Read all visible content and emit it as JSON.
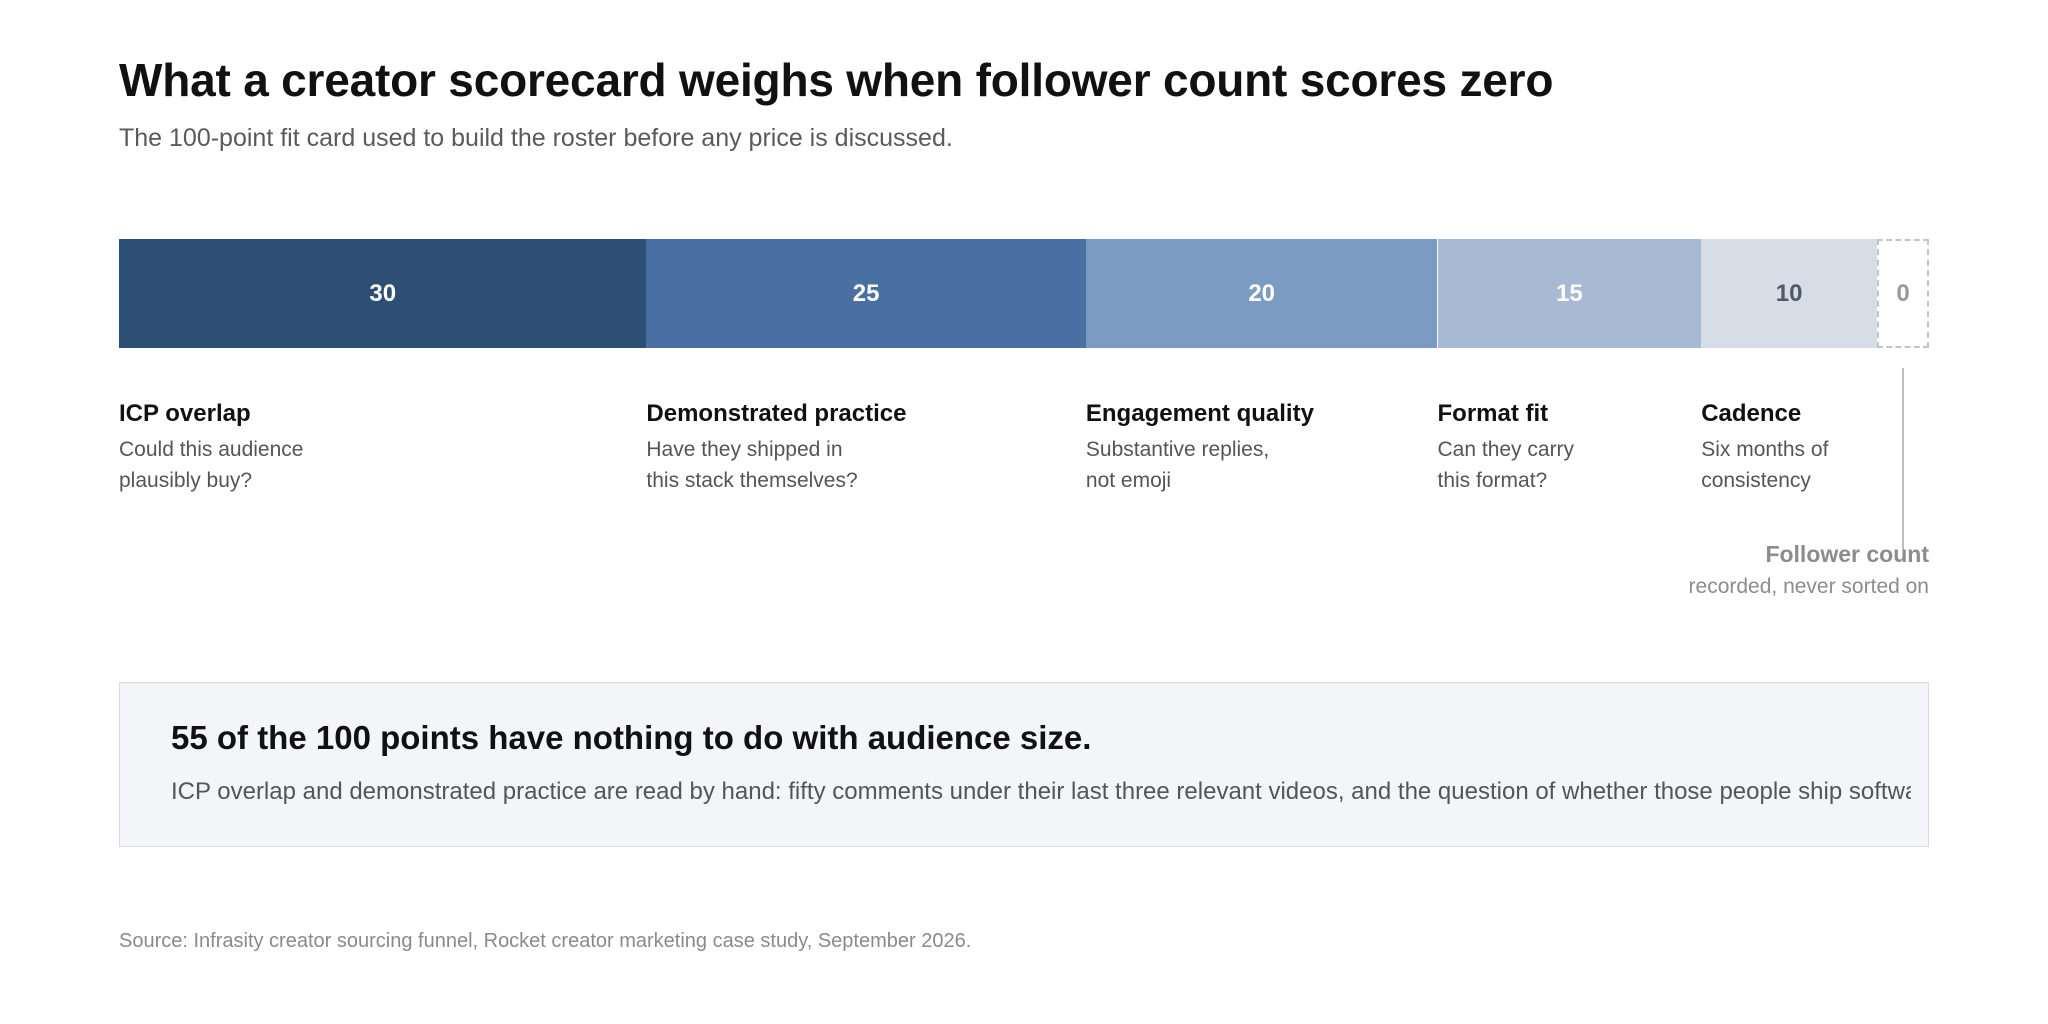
{
  "title": "What a creator scorecard weighs when follower count scores zero",
  "subtitle": "The 100-point fit card used to build the roster before any price is discussed.",
  "chart_data": {
    "type": "bar",
    "orientation": "horizontal-stacked",
    "total": 100,
    "categories": [
      "ICP overlap",
      "Demonstrated practice",
      "Engagement quality",
      "Format fit",
      "Cadence",
      "Follower count"
    ],
    "values": [
      30,
      25,
      20,
      15,
      10,
      0
    ],
    "segments": [
      {
        "name": "ICP overlap",
        "value": 30,
        "label": "30",
        "desc_lines": [
          "Could this audience",
          "plausibly buy?"
        ],
        "fill": "#2e4f74",
        "text_color": "#ffffff"
      },
      {
        "name": "Demonstrated practice",
        "value": 25,
        "label": "25",
        "desc_lines": [
          "Have they shipped in",
          "this stack themselves?"
        ],
        "fill": "#4a6fa3",
        "text_color": "#ffffff"
      },
      {
        "name": "Engagement quality",
        "value": 20,
        "label": "20",
        "desc_lines": [
          "Substantive replies,",
          "not emoji"
        ],
        "fill": "#7c9bc2",
        "text_color": "#ffffff"
      },
      {
        "name": "Format fit",
        "value": 15,
        "label": "15",
        "desc_lines": [
          "Can they carry",
          "this format?"
        ],
        "fill": "#a7b9d3",
        "text_color": "#ffffff"
      },
      {
        "name": "Cadence",
        "value": 10,
        "label": "10",
        "desc_lines": [
          "Six months of",
          "consistency"
        ],
        "fill": "#d6dde7",
        "text_color": "#505a66"
      }
    ],
    "zero_segment": {
      "name": "Follower count",
      "value": 0,
      "label": "0",
      "desc": "recorded, never sorted on",
      "border_color": "#c4c4c4",
      "text_color": "#9a9a9a"
    }
  },
  "callout": {
    "headline": "55 of the 100 points have nothing to do with audience size.",
    "body": "ICP overlap and demonstrated practice are read by hand: fifty comments under their last three relevant videos, and the question of whether those people ship software"
  },
  "source": "Source: Infrasity creator sourcing funnel, Rocket creator marketing case study, September 2026."
}
